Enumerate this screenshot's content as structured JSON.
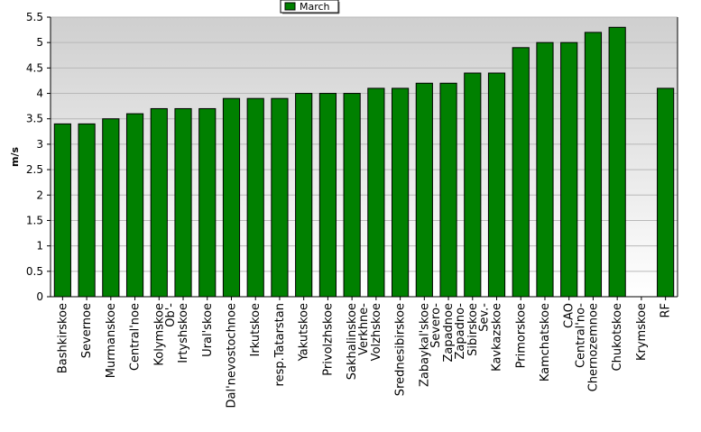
{
  "chart_data": {
    "type": "bar",
    "title": "",
    "xlabel": "",
    "ylabel": "m/s",
    "ylim": [
      0,
      5.5
    ],
    "y_ticks": [
      0,
      0.5,
      1,
      1.5,
      2,
      2.5,
      3,
      3.5,
      4,
      4.5,
      5,
      5.5
    ],
    "y_tick_labels": [
      "0",
      "0.5",
      "1",
      "1.5",
      "2",
      "2.5",
      "3",
      "3.5",
      "4",
      "4.5",
      "5",
      "5.5"
    ],
    "grid": true,
    "legend_position": "top-center",
    "categories": [
      "Bashkirskoe",
      "Severnoe",
      "Murmanskoe",
      "Central'noe",
      "Kolymskoe",
      "Ob'-Irtyshskoe",
      "Ural'skoe",
      "Dal'nevostochnoe",
      "Irkutskoe",
      "resp.Tatarstan",
      "Yakutskoe",
      "Privolzhskoe",
      "Sakhalinskoe",
      "Verkhne-Volzhskoe",
      "Srednesibirskoe",
      "Zabaykal'skoe",
      "Severo-Zapadnoe",
      "Zapadno-Sibirskoe",
      "Sev.-Kavkazskoe",
      "Primorskoe",
      "Kamchatskoe",
      "CAO",
      "Central'no-Chernozemnoe",
      "Chukotskoe",
      "Krymskoe",
      "RF"
    ],
    "category_display_lines": [
      [
        "Bashkirskoe"
      ],
      [
        "Severnoe"
      ],
      [
        "Murmanskoe"
      ],
      [
        "Central'noe"
      ],
      [
        "Kolymskoe"
      ],
      [
        "Ob'-",
        "Irtyshskoe"
      ],
      [
        "Ural'skoe"
      ],
      [
        "Dal'nevostochnoe"
      ],
      [
        "Irkutskoe"
      ],
      [
        "resp.Tatarstan"
      ],
      [
        "Yakutskoe"
      ],
      [
        "Privolzhskoe"
      ],
      [
        "Sakhalinskoe"
      ],
      [
        "Verkhne-",
        "Volzhskoe"
      ],
      [
        "Srednesibirskoe"
      ],
      [
        "Zabaykal'skoe"
      ],
      [
        "Severo-",
        "Zapadnoe"
      ],
      [
        "Zapadno-",
        "Sibirskoe"
      ],
      [
        "Sev.-",
        "Kavkazskoe"
      ],
      [
        "Primorskoe"
      ],
      [
        "Kamchatskoe"
      ],
      [
        "CAO"
      ],
      [
        "Central'no-",
        "Chernozemnoe"
      ],
      [
        "Chukotskoe"
      ],
      [
        "Krymskoe"
      ],
      [
        "RF"
      ]
    ],
    "series": [
      {
        "name": "March",
        "color": "#008000",
        "values": [
          3.4,
          3.4,
          3.5,
          3.6,
          3.7,
          3.7,
          3.7,
          3.9,
          3.9,
          3.9,
          4.0,
          4.0,
          4.0,
          4.1,
          4.1,
          4.2,
          4.2,
          4.4,
          4.4,
          4.9,
          5.0,
          5.0,
          5.2,
          5.3,
          null,
          4.1
        ]
      }
    ]
  },
  "colors": {
    "bar": "#008000",
    "bar_edge": "#000000",
    "plot_bg_top": "#cfcfcf",
    "plot_bg_bottom": "#ffffff",
    "grid": "#b8b8b8"
  }
}
